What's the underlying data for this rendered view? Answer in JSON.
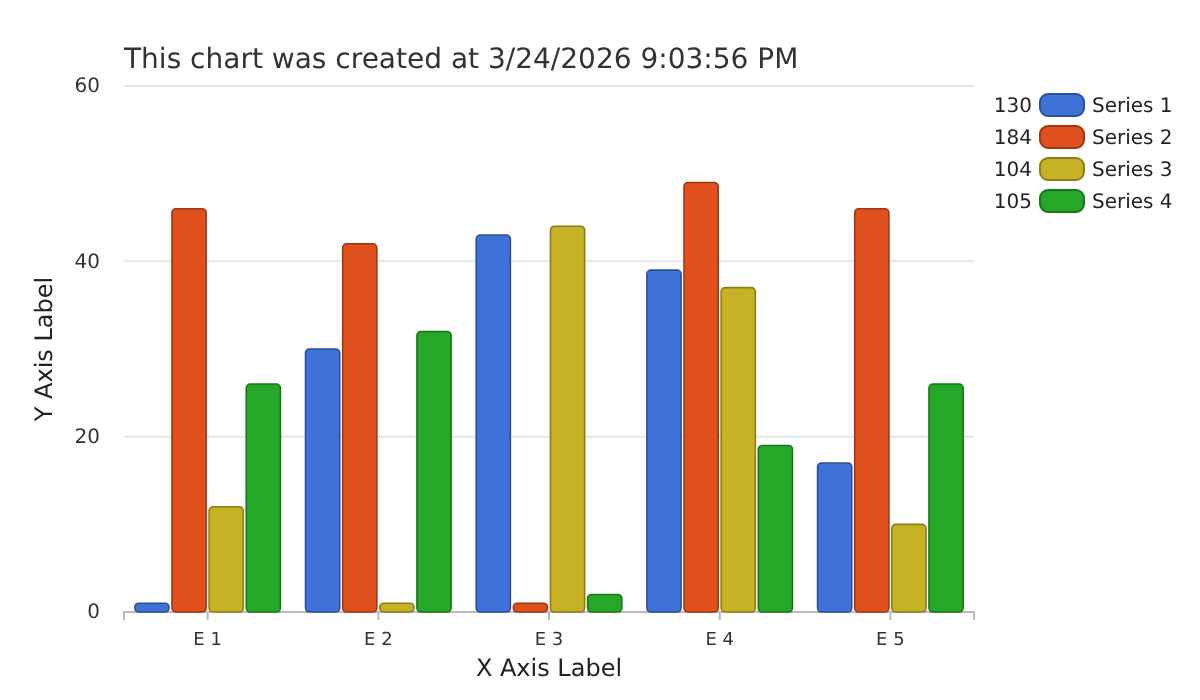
{
  "chart_data": {
    "type": "bar",
    "title": "This chart was created at 3/24/2026 9:03:56 PM",
    "xlabel": "X Axis Label",
    "ylabel": "Y Axis Label",
    "categories": [
      "E 1",
      "E 2",
      "E 3",
      "E 4",
      "E 5"
    ],
    "series": [
      {
        "name": "Series 1",
        "color": "#3f72d8",
        "values": [
          1,
          30,
          43,
          39,
          17
        ]
      },
      {
        "name": "Series 2",
        "color": "#e0501e",
        "values": [
          46,
          42,
          1,
          49,
          46
        ]
      },
      {
        "name": "Series 3",
        "color": "#c6b224",
        "values": [
          12,
          1,
          44,
          37,
          10
        ]
      },
      {
        "name": "Series 4",
        "color": "#25a828",
        "values": [
          26,
          32,
          2,
          19,
          26
        ]
      }
    ],
    "annotations": [
      "130",
      "184",
      "104",
      "105"
    ],
    "ylim": [
      0,
      60
    ],
    "yticks": [
      0,
      20,
      40,
      60
    ],
    "grid": "y",
    "legend": "top right"
  }
}
